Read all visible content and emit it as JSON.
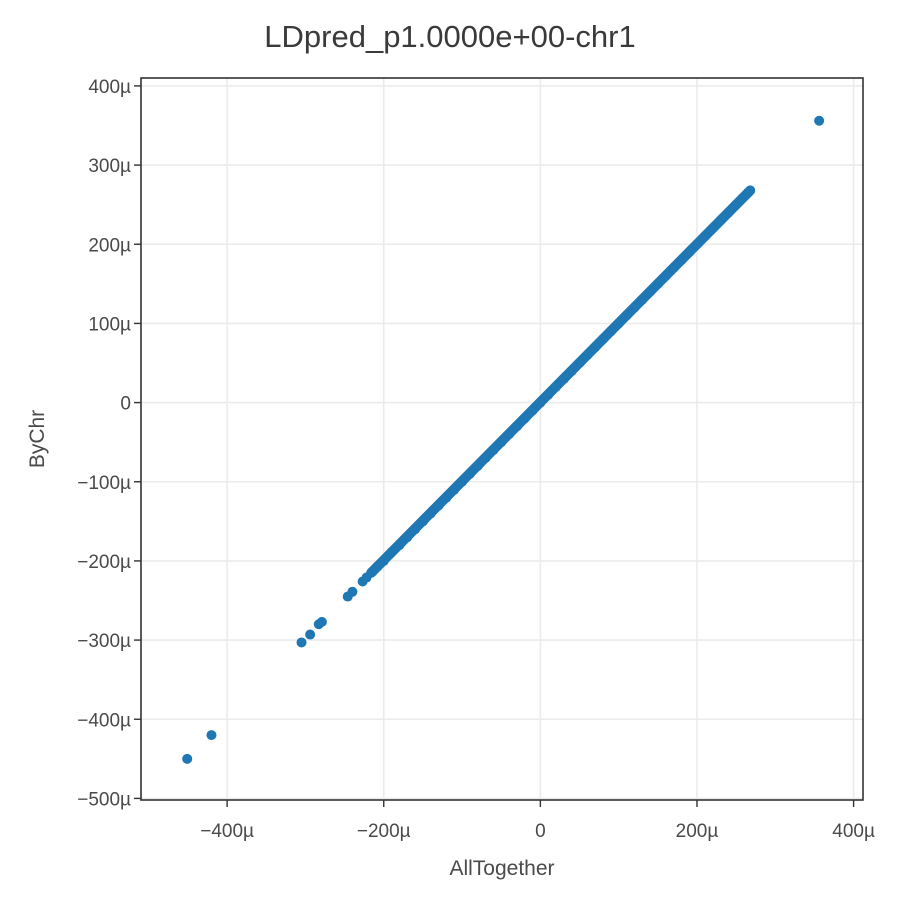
{
  "chart_data": {
    "type": "scatter",
    "title": "LDpred_p1.0000e+00-chr1",
    "xlabel": "AllTogether",
    "ylabel": "ByChr",
    "xlim": [
      -510,
      412
    ],
    "ylim": [
      -502,
      410
    ],
    "x_unit_note": "values in micro-units (µ)",
    "x_ticks": [
      {
        "value": -400,
        "label": "−400µ"
      },
      {
        "value": -200,
        "label": "−200µ"
      },
      {
        "value": 0,
        "label": "0"
      },
      {
        "value": 200,
        "label": "200µ"
      },
      {
        "value": 400,
        "label": "400µ"
      }
    ],
    "y_ticks": [
      {
        "value": -500,
        "label": "−500µ"
      },
      {
        "value": -400,
        "label": "−400µ"
      },
      {
        "value": -300,
        "label": "−300µ"
      },
      {
        "value": -200,
        "label": "−200µ"
      },
      {
        "value": -100,
        "label": "−100µ"
      },
      {
        "value": 0,
        "label": "0"
      },
      {
        "value": 100,
        "label": "100µ"
      },
      {
        "value": 200,
        "label": "200µ"
      },
      {
        "value": 300,
        "label": "300µ"
      },
      {
        "value": 400,
        "label": "400µ"
      }
    ],
    "grid": true,
    "point_color": "#1f77b4",
    "series": [
      {
        "points": [
          {
            "x": -451,
            "y": -450
          },
          {
            "x": -420,
            "y": -420
          },
          {
            "x": -305,
            "y": -303
          },
          {
            "x": -294,
            "y": -293
          },
          {
            "x": -283,
            "y": -280
          },
          {
            "x": -279,
            "y": -277
          },
          {
            "x": -246,
            "y": -245
          },
          {
            "x": -240,
            "y": -239
          },
          {
            "x": -227,
            "y": -226
          },
          {
            "x": -222,
            "y": -221
          },
          {
            "x": -215,
            "y": -214
          },
          {
            "x": -208,
            "y": -207
          },
          {
            "x": -200,
            "y": -200
          },
          {
            "x": -190,
            "y": -189
          },
          {
            "x": -180,
            "y": -180
          },
          {
            "x": -170,
            "y": -170
          },
          {
            "x": -160,
            "y": -160
          },
          {
            "x": -150,
            "y": -150
          },
          {
            "x": -140,
            "y": -140
          },
          {
            "x": -130,
            "y": -130
          },
          {
            "x": -120,
            "y": -120
          },
          {
            "x": -110,
            "y": -110
          },
          {
            "x": -100,
            "y": -100
          },
          {
            "x": -90,
            "y": -90
          },
          {
            "x": -80,
            "y": -80
          },
          {
            "x": -70,
            "y": -70
          },
          {
            "x": -60,
            "y": -60
          },
          {
            "x": -50,
            "y": -50
          },
          {
            "x": -40,
            "y": -40
          },
          {
            "x": -30,
            "y": -30
          },
          {
            "x": -20,
            "y": -20
          },
          {
            "x": -10,
            "y": -10
          },
          {
            "x": 0,
            "y": 0
          },
          {
            "x": 10,
            "y": 10
          },
          {
            "x": 20,
            "y": 20
          },
          {
            "x": 30,
            "y": 30
          },
          {
            "x": 40,
            "y": 40
          },
          {
            "x": 50,
            "y": 50
          },
          {
            "x": 60,
            "y": 60
          },
          {
            "x": 70,
            "y": 70
          },
          {
            "x": 80,
            "y": 80
          },
          {
            "x": 90,
            "y": 90
          },
          {
            "x": 100,
            "y": 100
          },
          {
            "x": 110,
            "y": 110
          },
          {
            "x": 120,
            "y": 120
          },
          {
            "x": 130,
            "y": 130
          },
          {
            "x": 140,
            "y": 140
          },
          {
            "x": 150,
            "y": 150
          },
          {
            "x": 160,
            "y": 160
          },
          {
            "x": 170,
            "y": 170
          },
          {
            "x": 180,
            "y": 180
          },
          {
            "x": 190,
            "y": 190
          },
          {
            "x": 200,
            "y": 200
          },
          {
            "x": 210,
            "y": 210
          },
          {
            "x": 220,
            "y": 220
          },
          {
            "x": 230,
            "y": 230
          },
          {
            "x": 240,
            "y": 240
          },
          {
            "x": 250,
            "y": 250
          },
          {
            "x": 258,
            "y": 258
          },
          {
            "x": 265,
            "y": 265
          },
          {
            "x": 268,
            "y": 268
          },
          {
            "x": 356,
            "y": 356
          }
        ]
      }
    ]
  }
}
